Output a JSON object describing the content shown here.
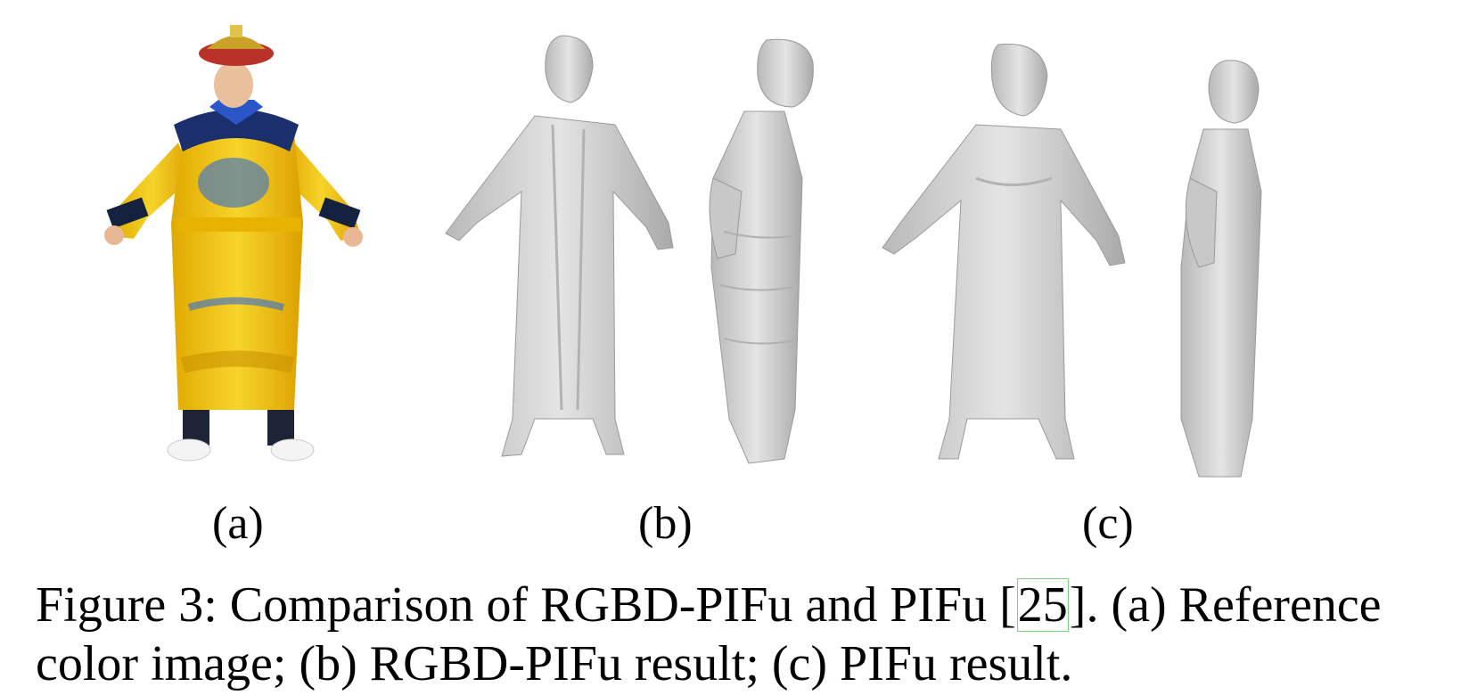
{
  "figure": {
    "panels": [
      {
        "id": "a",
        "label": "(a)"
      },
      {
        "id": "b",
        "label": "(b)"
      },
      {
        "id": "c",
        "label": "(c)"
      }
    ]
  },
  "caption": {
    "prefix": "Figure 3:  Comparison of RGBD-PIFu and PIFu [",
    "citation": "25",
    "suffix": "].  (a) Reference color image; (b) RGBD-PIFu result; (c) PIFu result."
  },
  "colors": {
    "robe": "#f2c418",
    "collar": "#1a2f6b",
    "hat": "#b8322a",
    "mesh": "#cfcfcf",
    "mesh_shadow": "#9a9a9a"
  }
}
